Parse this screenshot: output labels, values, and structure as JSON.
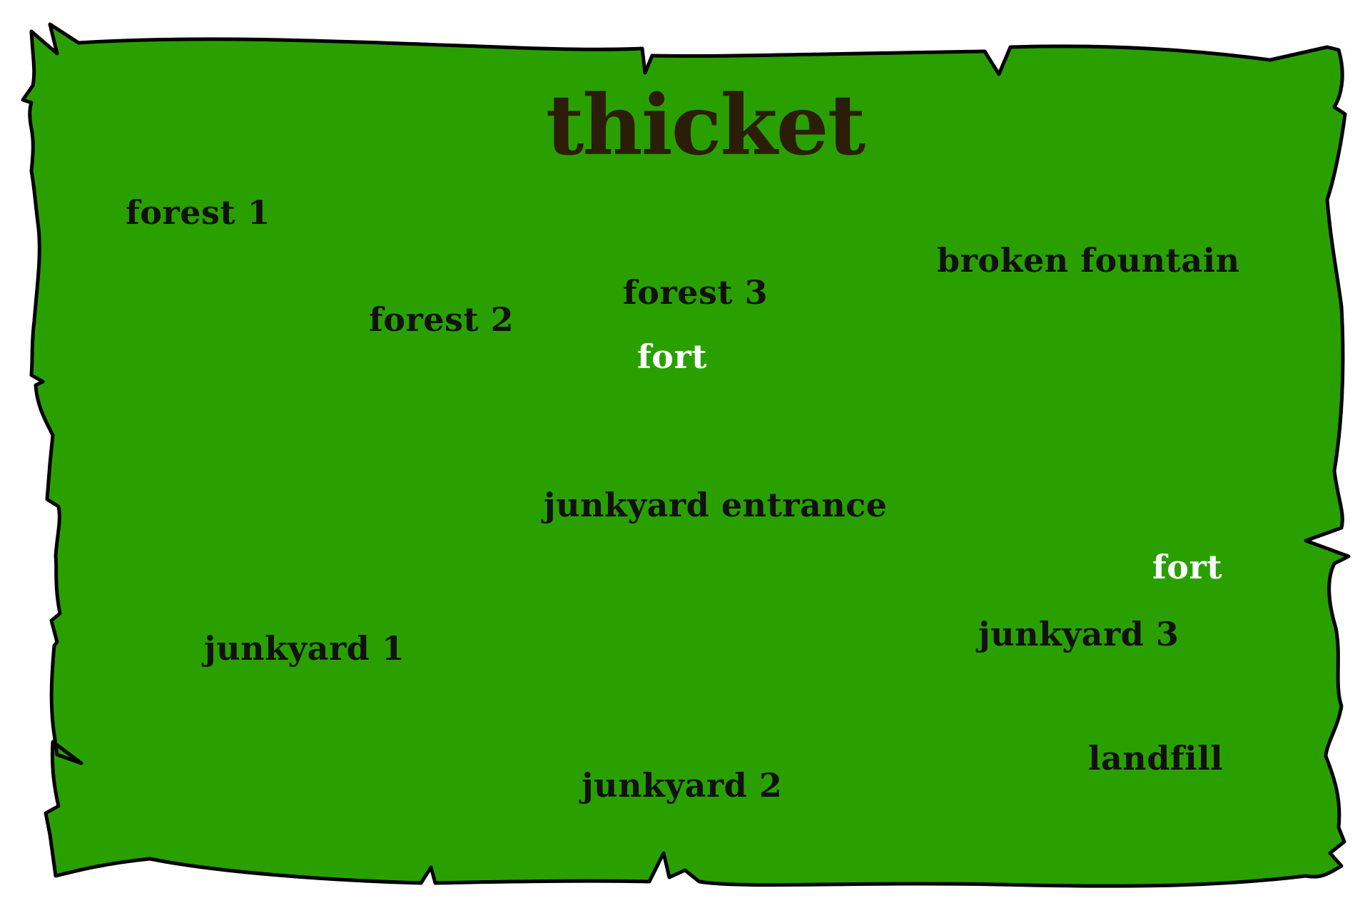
{
  "map": {
    "title": "thicket",
    "colors": {
      "land": "#2aa000",
      "border": "#000000",
      "title": "#2b1d08",
      "label": "#111111",
      "highlight_label": "#ffffff"
    },
    "places": {
      "forest_1": "forest 1",
      "forest_2": "forest 2",
      "forest_3": "forest 3",
      "broken_fountain": "broken fountain",
      "fort_north": "fort",
      "junkyard_entrance": "junkyard entrance",
      "fort_east": "fort",
      "junkyard_1": "junkyard 1",
      "junkyard_2": "junkyard 2",
      "junkyard_3": "junkyard 3",
      "landfill": "landfill"
    }
  }
}
